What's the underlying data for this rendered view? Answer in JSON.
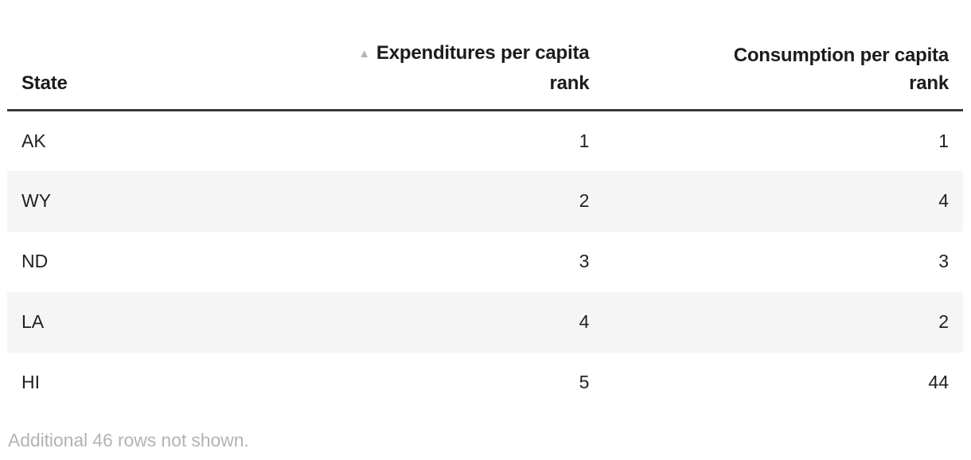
{
  "colors": {
    "stripe": "#f5f5f5",
    "header_rule": "#3a3a3a",
    "muted_gray": "#b3b3b3",
    "text": "#212121"
  },
  "table": {
    "sort_icon": "▲",
    "headers": {
      "state": "State",
      "expenditures": {
        "line1": "Expenditures per capita",
        "line2": "rank"
      },
      "consumption": {
        "line1": "Consumption per capita",
        "line2": "rank"
      }
    },
    "rows": [
      {
        "state": "AK",
        "expenditures_rank": "1",
        "consumption_rank": "1"
      },
      {
        "state": "WY",
        "expenditures_rank": "2",
        "consumption_rank": "4"
      },
      {
        "state": "ND",
        "expenditures_rank": "3",
        "consumption_rank": "3"
      },
      {
        "state": "LA",
        "expenditures_rank": "4",
        "consumption_rank": "2"
      },
      {
        "state": "HI",
        "expenditures_rank": "5",
        "consumption_rank": "44"
      }
    ],
    "footer_note": "Additional 46 rows not shown."
  }
}
